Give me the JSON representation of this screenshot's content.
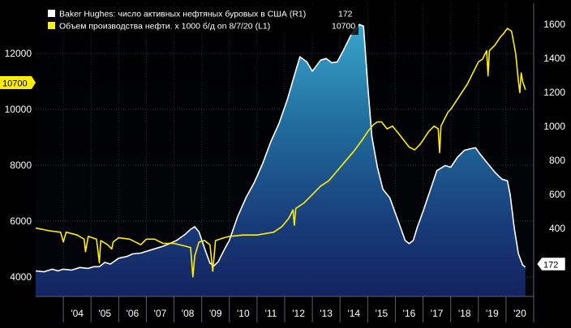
{
  "chart_data": {
    "type": "line",
    "series": [
      {
        "name": "Baker Hughes:  число активных нефтяных буровых в США (R1)",
        "last_value": "172",
        "axis": "right",
        "color": "#ffffff",
        "style": "line with area fill",
        "points": [
          [
            2003.0,
            150
          ],
          [
            2003.3,
            145
          ],
          [
            2003.6,
            160
          ],
          [
            2003.8,
            150
          ],
          [
            2004.0,
            160
          ],
          [
            2004.3,
            155
          ],
          [
            2004.6,
            170
          ],
          [
            2004.9,
            165
          ],
          [
            2005.1,
            175
          ],
          [
            2005.3,
            175
          ],
          [
            2005.5,
            200
          ],
          [
            2005.7,
            190
          ],
          [
            2006.0,
            225
          ],
          [
            2006.3,
            235
          ],
          [
            2006.5,
            250
          ],
          [
            2006.8,
            255
          ],
          [
            2007.0,
            265
          ],
          [
            2007.3,
            280
          ],
          [
            2007.6,
            295
          ],
          [
            2007.9,
            315
          ],
          [
            2008.1,
            330
          ],
          [
            2008.4,
            365
          ],
          [
            2008.6,
            395
          ],
          [
            2008.75,
            410
          ],
          [
            2008.9,
            380
          ],
          [
            2009.1,
            285
          ],
          [
            2009.3,
            195
          ],
          [
            2009.45,
            180
          ],
          [
            2009.6,
            205
          ],
          [
            2009.8,
            270
          ],
          [
            2010.0,
            330
          ],
          [
            2010.3,
            470
          ],
          [
            2010.6,
            580
          ],
          [
            2010.9,
            670
          ],
          [
            2011.2,
            780
          ],
          [
            2011.5,
            910
          ],
          [
            2011.8,
            1020
          ],
          [
            2012.1,
            1160
          ],
          [
            2012.35,
            1300
          ],
          [
            2012.55,
            1410
          ],
          [
            2012.8,
            1380
          ],
          [
            2013.0,
            1325
          ],
          [
            2013.3,
            1390
          ],
          [
            2013.5,
            1400
          ],
          [
            2013.7,
            1375
          ],
          [
            2013.9,
            1380
          ],
          [
            2014.1,
            1440
          ],
          [
            2014.4,
            1540
          ],
          [
            2014.7,
            1600
          ],
          [
            2014.85,
            1590
          ],
          [
            2015.0,
            1250
          ],
          [
            2015.15,
            940
          ],
          [
            2015.35,
            760
          ],
          [
            2015.55,
            630
          ],
          [
            2015.8,
            580
          ],
          [
            2016.0,
            490
          ],
          [
            2016.2,
            400
          ],
          [
            2016.35,
            330
          ],
          [
            2016.5,
            310
          ],
          [
            2016.65,
            330
          ],
          [
            2016.8,
            410
          ],
          [
            2017.0,
            500
          ],
          [
            2017.25,
            620
          ],
          [
            2017.5,
            740
          ],
          [
            2017.8,
            770
          ],
          [
            2018.0,
            760
          ],
          [
            2018.25,
            820
          ],
          [
            2018.5,
            860
          ],
          [
            2018.75,
            870
          ],
          [
            2018.9,
            875
          ],
          [
            2019.05,
            840
          ],
          [
            2019.3,
            790
          ],
          [
            2019.6,
            730
          ],
          [
            2019.85,
            690
          ],
          [
            2020.05,
            680
          ],
          [
            2020.15,
            600
          ],
          [
            2020.3,
            400
          ],
          [
            2020.45,
            250
          ],
          [
            2020.6,
            185
          ],
          [
            2020.7,
            172
          ]
        ]
      },
      {
        "name": "Объем производства нефти. x 1000 б/д on 8/7/20 (L1)",
        "last_value": "10700",
        "axis": "left",
        "color": "#ffee00",
        "style": "line",
        "points": [
          [
            2003.0,
            5750
          ],
          [
            2003.5,
            5650
          ],
          [
            2003.9,
            5600
          ],
          [
            2004.0,
            5250
          ],
          [
            2004.1,
            5600
          ],
          [
            2004.5,
            5500
          ],
          [
            2004.75,
            5350
          ],
          [
            2004.8,
            4900
          ],
          [
            2004.9,
            5450
          ],
          [
            2005.2,
            5350
          ],
          [
            2005.3,
            4500
          ],
          [
            2005.35,
            5300
          ],
          [
            2005.6,
            5150
          ],
          [
            2005.75,
            5000
          ],
          [
            2005.8,
            5250
          ],
          [
            2006.0,
            5400
          ],
          [
            2006.4,
            5350
          ],
          [
            2006.8,
            5150
          ],
          [
            2007.0,
            5350
          ],
          [
            2007.3,
            5350
          ],
          [
            2007.6,
            5200
          ],
          [
            2008.0,
            5200
          ],
          [
            2008.4,
            5100
          ],
          [
            2008.6,
            5050
          ],
          [
            2008.68,
            4000
          ],
          [
            2008.75,
            4750
          ],
          [
            2008.9,
            5250
          ],
          [
            2009.1,
            5300
          ],
          [
            2009.3,
            5150
          ],
          [
            2009.4,
            4200
          ],
          [
            2009.5,
            5300
          ],
          [
            2009.8,
            5400
          ],
          [
            2010.0,
            5450
          ],
          [
            2010.5,
            5500
          ],
          [
            2011.0,
            5500
          ],
          [
            2011.3,
            5550
          ],
          [
            2011.6,
            5600
          ],
          [
            2011.9,
            5800
          ],
          [
            2012.15,
            6100
          ],
          [
            2012.3,
            6400
          ],
          [
            2012.35,
            5850
          ],
          [
            2012.4,
            6450
          ],
          [
            2012.7,
            6650
          ],
          [
            2013.0,
            6950
          ],
          [
            2013.3,
            7250
          ],
          [
            2013.6,
            7450
          ],
          [
            2013.9,
            7800
          ],
          [
            2014.2,
            8150
          ],
          [
            2014.5,
            8500
          ],
          [
            2014.8,
            8900
          ],
          [
            2015.0,
            9200
          ],
          [
            2015.2,
            9450
          ],
          [
            2015.35,
            9550
          ],
          [
            2015.5,
            9550
          ],
          [
            2015.7,
            9300
          ],
          [
            2015.9,
            9400
          ],
          [
            2016.1,
            9150
          ],
          [
            2016.3,
            8900
          ],
          [
            2016.5,
            8650
          ],
          [
            2016.7,
            8550
          ],
          [
            2016.9,
            8750
          ],
          [
            2017.0,
            8900
          ],
          [
            2017.2,
            9200
          ],
          [
            2017.4,
            9400
          ],
          [
            2017.55,
            9300
          ],
          [
            2017.6,
            8450
          ],
          [
            2017.65,
            9400
          ],
          [
            2017.8,
            9700
          ],
          [
            2017.9,
            9900
          ],
          [
            2018.0,
            10000
          ],
          [
            2018.2,
            10300
          ],
          [
            2018.4,
            10600
          ],
          [
            2018.6,
            10900
          ],
          [
            2018.8,
            11300
          ],
          [
            2019.0,
            11700
          ],
          [
            2019.15,
            11800
          ],
          [
            2019.3,
            12100
          ],
          [
            2019.35,
            11200
          ],
          [
            2019.4,
            12100
          ],
          [
            2019.6,
            12300
          ],
          [
            2019.8,
            12600
          ],
          [
            2019.9,
            12700
          ],
          [
            2020.05,
            12900
          ],
          [
            2020.2,
            12800
          ],
          [
            2020.35,
            12000
          ],
          [
            2020.45,
            11000
          ],
          [
            2020.5,
            10600
          ],
          [
            2020.55,
            11300
          ],
          [
            2020.6,
            11000
          ],
          [
            2020.7,
            10700
          ]
        ]
      }
    ],
    "x_axis": {
      "range": [
        2003.0,
        2021.0
      ],
      "tick_labels": [
        "'04",
        "'05",
        "'06",
        "'07",
        "'08",
        "'09",
        "'10",
        "'11",
        "'12",
        "'13",
        "'14",
        "'15",
        "'16",
        "'17",
        "'18",
        "'19",
        "'20"
      ]
    },
    "left_axis": {
      "range": [
        3300,
        13800
      ],
      "ticks": [
        4000,
        6000,
        8000,
        10000,
        12000
      ],
      "tick_labels": [
        "4000",
        "6000",
        "8000",
        "10000",
        "12000"
      ]
    },
    "right_axis": {
      "range": [
        0,
        1725
      ],
      "ticks": [
        400,
        600,
        800,
        1000,
        1200,
        1400,
        1600
      ],
      "tick_labels": [
        "400",
        "600",
        "800",
        "1000",
        "1200",
        "1400",
        "1600"
      ]
    },
    "left_value_flag": "10700",
    "right_value_flag": "172",
    "legend_placement": "top-left",
    "grid": true
  }
}
